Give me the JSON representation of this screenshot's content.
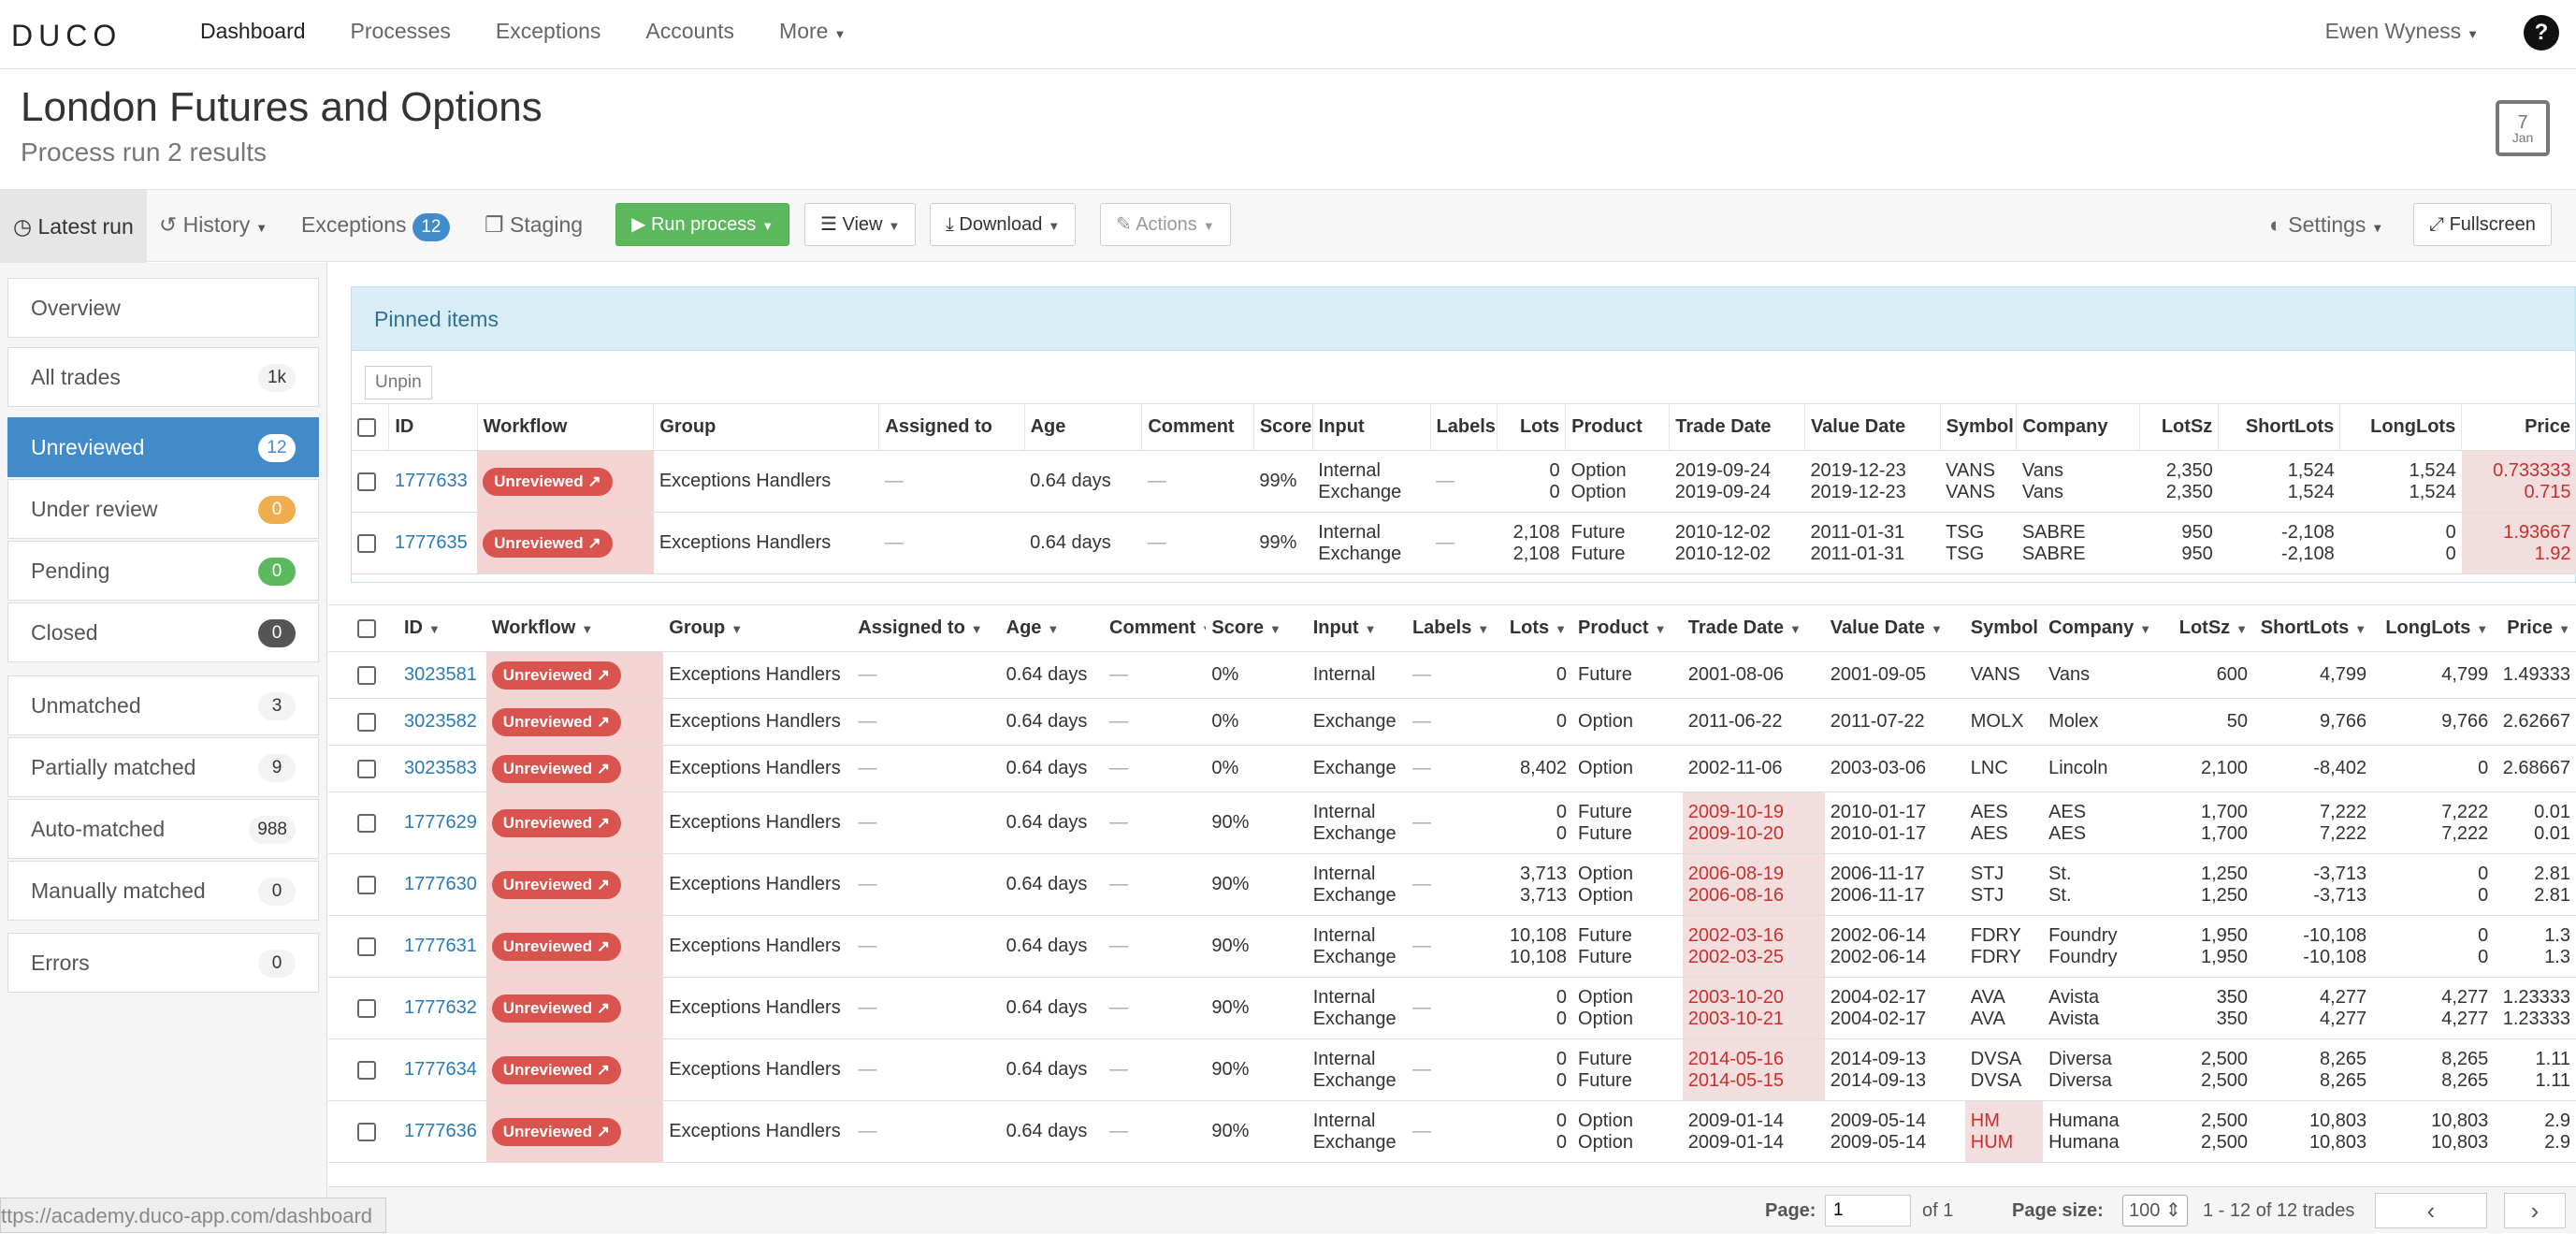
{
  "nav": {
    "logo": "DUCO",
    "links": [
      "Dashboard",
      "Processes",
      "Exceptions",
      "Accounts",
      "More"
    ],
    "user": "Ewen Wyness",
    "help": "?"
  },
  "header": {
    "title": "London Futures and Options",
    "subtitle": "Process run 2 results",
    "calendar_day": "7",
    "calendar_month": "Jan"
  },
  "toolbar": {
    "latest_run": "Latest run",
    "history": "History",
    "exceptions": "Exceptions",
    "exceptions_count": "12",
    "staging": "Staging",
    "run_process": "Run process",
    "view": "View",
    "download": "Download",
    "actions": "Actions",
    "settings": "Settings",
    "fullscreen": "Fullscreen"
  },
  "sidebar": {
    "items": [
      {
        "label": "Overview",
        "count": ""
      },
      {
        "label": "All trades",
        "count": "1k"
      },
      {
        "label": "Unreviewed",
        "count": "12"
      },
      {
        "label": "Under review",
        "count": "0"
      },
      {
        "label": "Pending",
        "count": "0"
      },
      {
        "label": "Closed",
        "count": "0"
      },
      {
        "label": "Unmatched",
        "count": "3"
      },
      {
        "label": "Partially matched",
        "count": "9"
      },
      {
        "label": "Auto-matched",
        "count": "988"
      },
      {
        "label": "Manually matched",
        "count": "0"
      },
      {
        "label": "Errors",
        "count": "0"
      }
    ]
  },
  "pinned": {
    "title": "Pinned items",
    "unpin": "Unpin",
    "columns": [
      "ID",
      "Workflow",
      "Group",
      "Assigned to",
      "Age",
      "Comment",
      "Score",
      "Input",
      "Labels",
      "Lots",
      "Product",
      "Trade Date",
      "Value Date",
      "Symbol",
      "Company",
      "LotSz",
      "ShortLots",
      "LongLots",
      "Price"
    ],
    "rows": [
      {
        "id": "1777633",
        "workflow": "Unreviewed",
        "group": "Exceptions Handlers",
        "assigned": "—",
        "age": "0.64 days",
        "comment": "—",
        "score": "99%",
        "input": [
          "Internal",
          "Exchange"
        ],
        "labels": "—",
        "lots": [
          "0",
          "0"
        ],
        "product": [
          "Option",
          "Option"
        ],
        "trade_date": [
          "2019-09-24",
          "2019-09-24"
        ],
        "value_date": [
          "2019-12-23",
          "2019-12-23"
        ],
        "symbol": [
          "VANS",
          "VANS"
        ],
        "company": [
          "Vans",
          "Vans"
        ],
        "lotsz": [
          "2,350",
          "2,350"
        ],
        "shortlots": [
          "1,524",
          "1,524"
        ],
        "longlots": [
          "1,524",
          "1,524"
        ],
        "price": [
          "0.733333",
          "0.715"
        ]
      },
      {
        "id": "1777635",
        "workflow": "Unreviewed",
        "group": "Exceptions Handlers",
        "assigned": "—",
        "age": "0.64 days",
        "comment": "—",
        "score": "99%",
        "input": [
          "Internal",
          "Exchange"
        ],
        "labels": "—",
        "lots": [
          "2,108",
          "2,108"
        ],
        "product": [
          "Future",
          "Future"
        ],
        "trade_date": [
          "2010-12-02",
          "2010-12-02"
        ],
        "value_date": [
          "2011-01-31",
          "2011-01-31"
        ],
        "symbol": [
          "TSG",
          "TSG"
        ],
        "company": [
          "SABRE",
          "SABRE"
        ],
        "lotsz": [
          "950",
          "950"
        ],
        "shortlots": [
          "-2,108",
          "-2,108"
        ],
        "longlots": [
          "0",
          "0"
        ],
        "price": [
          "1.93667",
          "1.92"
        ]
      }
    ]
  },
  "main": {
    "columns": [
      "ID",
      "Workflow",
      "Group",
      "Assigned to",
      "Age",
      "Comment",
      "Score",
      "Input",
      "Labels",
      "Lots",
      "Product",
      "Trade Date",
      "Value Date",
      "Symbol",
      "Company",
      "LotSz",
      "ShortLots",
      "LongLots",
      "Price"
    ],
    "rows": [
      {
        "id": "3023581",
        "workflow": "Unreviewed",
        "group": "Exceptions Handlers",
        "assigned": "—",
        "age": "0.64 days",
        "comment": "—",
        "score": "0%",
        "input": [
          "Internal"
        ],
        "labels": "—",
        "lots": [
          "0"
        ],
        "product": [
          "Future"
        ],
        "trade_date": [
          "2001-08-06"
        ],
        "value_date": [
          "2001-09-05"
        ],
        "symbol": [
          "VANS"
        ],
        "company": [
          "Vans"
        ],
        "lotsz": [
          "600"
        ],
        "shortlots": [
          "4,799"
        ],
        "longlots": [
          "4,799"
        ],
        "price": [
          "1.49333"
        ]
      },
      {
        "id": "3023582",
        "workflow": "Unreviewed",
        "group": "Exceptions Handlers",
        "assigned": "—",
        "age": "0.64 days",
        "comment": "—",
        "score": "0%",
        "input": [
          "Exchange"
        ],
        "labels": "—",
        "lots": [
          "0"
        ],
        "product": [
          "Option"
        ],
        "trade_date": [
          "2011-06-22"
        ],
        "value_date": [
          "2011-07-22"
        ],
        "symbol": [
          "MOLX"
        ],
        "company": [
          "Molex"
        ],
        "lotsz": [
          "50"
        ],
        "shortlots": [
          "9,766"
        ],
        "longlots": [
          "9,766"
        ],
        "price": [
          "2.62667"
        ]
      },
      {
        "id": "3023583",
        "workflow": "Unreviewed",
        "group": "Exceptions Handlers",
        "assigned": "—",
        "age": "0.64 days",
        "comment": "—",
        "score": "0%",
        "input": [
          "Exchange"
        ],
        "labels": "—",
        "lots": [
          "8,402"
        ],
        "product": [
          "Option"
        ],
        "trade_date": [
          "2002-11-06"
        ],
        "value_date": [
          "2003-03-06"
        ],
        "symbol": [
          "LNC"
        ],
        "company": [
          "Lincoln"
        ],
        "lotsz": [
          "2,100"
        ],
        "shortlots": [
          "-8,402"
        ],
        "longlots": [
          "0"
        ],
        "price": [
          "2.68667"
        ]
      },
      {
        "id": "1777629",
        "workflow": "Unreviewed",
        "group": "Exceptions Handlers",
        "assigned": "—",
        "age": "0.64 days",
        "comment": "—",
        "score": "90%",
        "input": [
          "Internal",
          "Exchange"
        ],
        "labels": "—",
        "lots": [
          "0",
          "0"
        ],
        "product": [
          "Future",
          "Future"
        ],
        "trade_date": [
          "2009-10-19",
          "2009-10-20"
        ],
        "value_date": [
          "2010-01-17",
          "2010-01-17"
        ],
        "symbol": [
          "AES",
          "AES"
        ],
        "company": [
          "AES",
          "AES"
        ],
        "lotsz": [
          "1,700",
          "1,700"
        ],
        "shortlots": [
          "7,222",
          "7,222"
        ],
        "longlots": [
          "7,222",
          "7,222"
        ],
        "price": [
          "0.01",
          "0.01"
        ]
      },
      {
        "id": "1777630",
        "workflow": "Unreviewed",
        "group": "Exceptions Handlers",
        "assigned": "—",
        "age": "0.64 days",
        "comment": "—",
        "score": "90%",
        "input": [
          "Internal",
          "Exchange"
        ],
        "labels": "—",
        "lots": [
          "3,713",
          "3,713"
        ],
        "product": [
          "Option",
          "Option"
        ],
        "trade_date": [
          "2006-08-19",
          "2006-08-16"
        ],
        "value_date": [
          "2006-11-17",
          "2006-11-17"
        ],
        "symbol": [
          "STJ",
          "STJ"
        ],
        "company": [
          "St.",
          "St."
        ],
        "lotsz": [
          "1,250",
          "1,250"
        ],
        "shortlots": [
          "-3,713",
          "-3,713"
        ],
        "longlots": [
          "0",
          "0"
        ],
        "price": [
          "2.81",
          "2.81"
        ]
      },
      {
        "id": "1777631",
        "workflow": "Unreviewed",
        "group": "Exceptions Handlers",
        "assigned": "—",
        "age": "0.64 days",
        "comment": "—",
        "score": "90%",
        "input": [
          "Internal",
          "Exchange"
        ],
        "labels": "—",
        "lots": [
          "10,108",
          "10,108"
        ],
        "product": [
          "Future",
          "Future"
        ],
        "trade_date": [
          "2002-03-16",
          "2002-03-25"
        ],
        "value_date": [
          "2002-06-14",
          "2002-06-14"
        ],
        "symbol": [
          "FDRY",
          "FDRY"
        ],
        "company": [
          "Foundry",
          "Foundry"
        ],
        "lotsz": [
          "1,950",
          "1,950"
        ],
        "shortlots": [
          "-10,108",
          "-10,108"
        ],
        "longlots": [
          "0",
          "0"
        ],
        "price": [
          "1.3",
          "1.3"
        ]
      },
      {
        "id": "1777632",
        "workflow": "Unreviewed",
        "group": "Exceptions Handlers",
        "assigned": "—",
        "age": "0.64 days",
        "comment": "—",
        "score": "90%",
        "input": [
          "Internal",
          "Exchange"
        ],
        "labels": "—",
        "lots": [
          "0",
          "0"
        ],
        "product": [
          "Option",
          "Option"
        ],
        "trade_date": [
          "2003-10-20",
          "2003-10-21"
        ],
        "value_date": [
          "2004-02-17",
          "2004-02-17"
        ],
        "symbol": [
          "AVA",
          "AVA"
        ],
        "company": [
          "Avista",
          "Avista"
        ],
        "lotsz": [
          "350",
          "350"
        ],
        "shortlots": [
          "4,277",
          "4,277"
        ],
        "longlots": [
          "4,277",
          "4,277"
        ],
        "price": [
          "1.23333",
          "1.23333"
        ]
      },
      {
        "id": "1777634",
        "workflow": "Unreviewed",
        "group": "Exceptions Handlers",
        "assigned": "—",
        "age": "0.64 days",
        "comment": "—",
        "score": "90%",
        "input": [
          "Internal",
          "Exchange"
        ],
        "labels": "—",
        "lots": [
          "0",
          "0"
        ],
        "product": [
          "Future",
          "Future"
        ],
        "trade_date": [
          "2014-05-16",
          "2014-05-15"
        ],
        "value_date": [
          "2014-09-13",
          "2014-09-13"
        ],
        "symbol": [
          "DVSA",
          "DVSA"
        ],
        "company": [
          "Diversa",
          "Diversa"
        ],
        "lotsz": [
          "2,500",
          "2,500"
        ],
        "shortlots": [
          "8,265",
          "8,265"
        ],
        "longlots": [
          "8,265",
          "8,265"
        ],
        "price": [
          "1.11",
          "1.11"
        ]
      },
      {
        "id": "1777636",
        "workflow": "Unreviewed",
        "group": "Exceptions Handlers",
        "assigned": "—",
        "age": "0.64 days",
        "comment": "—",
        "score": "90%",
        "input": [
          "Internal",
          "Exchange"
        ],
        "labels": "—",
        "lots": [
          "0",
          "0"
        ],
        "product": [
          "Option",
          "Option"
        ],
        "trade_date": [
          "2009-01-14",
          "2009-01-14"
        ],
        "value_date": [
          "2009-05-14",
          "2009-05-14"
        ],
        "symbol": [
          "HM",
          "HUM"
        ],
        "company": [
          "Humana",
          "Humana"
        ],
        "lotsz": [
          "2,500",
          "2,500"
        ],
        "shortlots": [
          "10,803",
          "10,803"
        ],
        "longlots": [
          "10,803",
          "10,803"
        ],
        "price": [
          "2.9",
          "2.9"
        ]
      }
    ]
  },
  "footer": {
    "page_label": "Page:",
    "page_value": "1",
    "of": "of 1",
    "page_size_label": "Page size:",
    "page_size": "100",
    "range": "1 - 12 of 12 trades",
    "prev": "‹",
    "next": "›"
  },
  "status_bar": "ttps://academy.duco-app.com/dashboard"
}
